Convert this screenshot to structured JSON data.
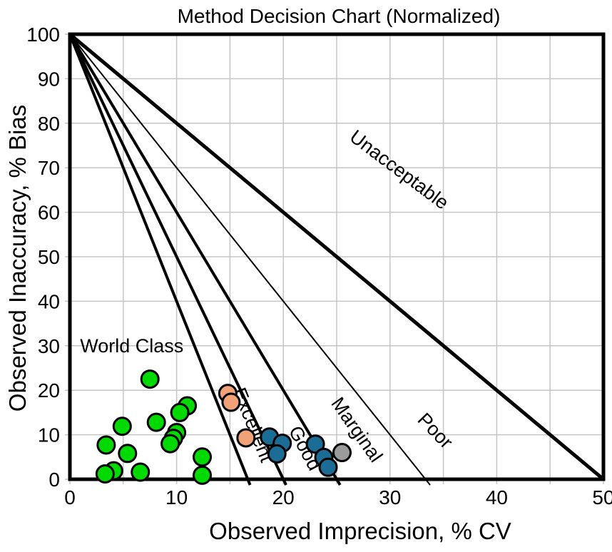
{
  "chart_data": {
    "type": "scatter",
    "title": "Method Decision Chart (Normalized)",
    "xlabel": "Observed Imprecision, % CV",
    "ylabel": "Observed Inaccuracy, % Bias",
    "xlim": [
      0,
      50
    ],
    "ylim": [
      0,
      100
    ],
    "xticks": [
      0,
      10,
      20,
      30,
      40,
      50
    ],
    "yticks": [
      0,
      10,
      20,
      30,
      40,
      50,
      60,
      70,
      80,
      90,
      100
    ],
    "x_gridline_step": 5,
    "y_gridline_step": 10,
    "grid_on": true,
    "grid_color": "#c5c5c5",
    "axis_color": "#000000",
    "decision_lines": {
      "origin": [
        0,
        100
      ],
      "x_intercepts": [
        16.67,
        20,
        25,
        33.33,
        50
      ],
      "stroke_widths": [
        4,
        4,
        4,
        2,
        5
      ],
      "color": "#000000"
    },
    "region_labels": [
      {
        "label": "World Class",
        "x": 5.8,
        "y": 28.5,
        "rotation": 0
      },
      {
        "label": "Excellent",
        "x": 16.6,
        "y": 11.7,
        "rotation": 68
      },
      {
        "label": "Good",
        "x": 21.5,
        "y": 6.3,
        "rotation": 62
      },
      {
        "label": "Marginal",
        "x": 26.4,
        "y": 10.3,
        "rotation": 55
      },
      {
        "label": "Poor",
        "x": 33.8,
        "y": 9.9,
        "rotation": 46
      },
      {
        "label": "Unacceptable",
        "x": 30.5,
        "y": 68.4,
        "rotation": 37
      }
    ],
    "series": [
      {
        "name": "green-points",
        "color": "#00da00",
        "points": [
          [
            7.5,
            22.5
          ],
          [
            11,
            16.5
          ],
          [
            10.3,
            15
          ],
          [
            8.1,
            12.8
          ],
          [
            4.9,
            11.9
          ],
          [
            10,
            10.5
          ],
          [
            9.7,
            9.2
          ],
          [
            9.4,
            8
          ],
          [
            3.4,
            7.7
          ],
          [
            5.4,
            5.8
          ],
          [
            12.4,
            5
          ],
          [
            4.1,
            1.9
          ],
          [
            3.3,
            1.2
          ],
          [
            6.6,
            1.6
          ],
          [
            12.4,
            0.9
          ]
        ]
      },
      {
        "name": "orange-points",
        "color": "#f2a277",
        "points": [
          [
            14.8,
            19.3
          ],
          [
            15.1,
            17.3
          ],
          [
            16.5,
            9.3
          ]
        ]
      },
      {
        "name": "blue-points",
        "color": "#1b6d96",
        "points": [
          [
            18.7,
            9.5
          ],
          [
            19.9,
            8.1
          ],
          [
            19.4,
            5.7
          ],
          [
            23,
            7.9
          ],
          [
            23.8,
            4.9
          ],
          [
            24.2,
            2.7
          ]
        ]
      },
      {
        "name": "gray-points",
        "color": "#9b9b9b",
        "points": [
          [
            25.5,
            6
          ]
        ]
      }
    ],
    "marker": {
      "radius": 12,
      "stroke": "#000000",
      "stroke_width": 3
    }
  }
}
